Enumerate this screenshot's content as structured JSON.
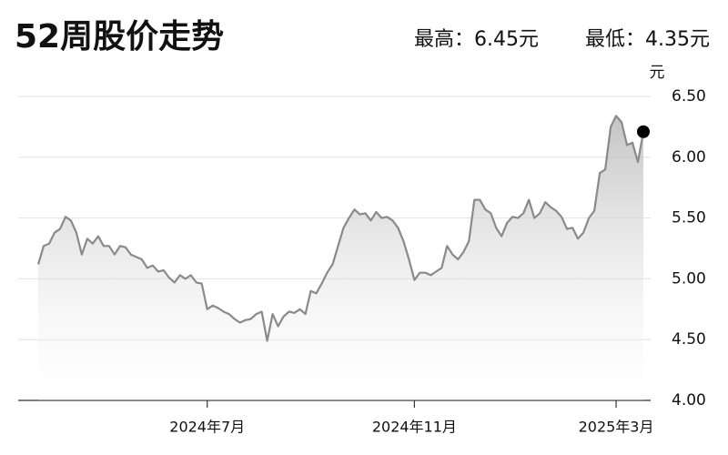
{
  "chart_data": {
    "type": "line",
    "title": "52周股价走势",
    "high_label": "最高：6.45元",
    "low_label": "最低：4.35元",
    "y_unit": "元",
    "categories": [
      null,
      null,
      null,
      null,
      null,
      null,
      null,
      null,
      null,
      null,
      null,
      null,
      null,
      null,
      null,
      null,
      null,
      null,
      null,
      null,
      null,
      null,
      null,
      null,
      null,
      null,
      null,
      null,
      null,
      null,
      null,
      "2024年7月",
      null,
      null,
      null,
      null,
      null,
      null,
      null,
      null,
      null,
      null,
      null,
      null,
      null,
      null,
      null,
      null,
      null,
      null,
      null,
      null,
      null,
      null,
      null,
      null,
      null,
      null,
      null,
      null,
      null,
      null,
      null,
      null,
      null,
      null,
      null,
      null,
      null,
      "2024年11月",
      null,
      null,
      null,
      null,
      null,
      null,
      null,
      null,
      null,
      null,
      null,
      null,
      null,
      null,
      null,
      null,
      null,
      null,
      null,
      null,
      null,
      null,
      null,
      null,
      null,
      null,
      null,
      null,
      null,
      null,
      null,
      null,
      null,
      null,
      null,
      null,
      "2025年3月",
      null,
      null,
      null,
      null,
      null
    ],
    "series": [
      {
        "color": "#8a8a8a",
        "values": [
          5.12,
          5.27,
          5.29,
          5.38,
          5.41,
          5.51,
          5.48,
          5.38,
          5.2,
          5.33,
          5.29,
          5.35,
          5.27,
          5.27,
          5.2,
          5.27,
          5.26,
          5.2,
          5.18,
          5.16,
          5.09,
          5.11,
          5.06,
          5.07,
          5.01,
          4.97,
          5.03,
          5.0,
          5.03,
          4.97,
          4.96,
          4.75,
          4.78,
          4.76,
          4.73,
          4.71,
          4.67,
          4.64,
          4.66,
          4.67,
          4.71,
          4.73,
          4.49,
          4.71,
          4.61,
          4.69,
          4.73,
          4.72,
          4.75,
          4.71,
          4.9,
          4.88,
          4.96,
          5.05,
          5.12,
          5.27,
          5.42,
          5.5,
          5.57,
          5.53,
          5.54,
          5.48,
          5.55,
          5.5,
          5.51,
          5.48,
          5.42,
          5.31,
          5.16,
          4.99,
          5.05,
          5.05,
          5.03,
          5.06,
          5.09,
          5.27,
          5.2,
          5.16,
          5.22,
          5.31,
          5.65,
          5.65,
          5.57,
          5.54,
          5.42,
          5.35,
          5.46,
          5.51,
          5.5,
          5.54,
          5.65,
          5.5,
          5.54,
          5.63,
          5.59,
          5.56,
          5.51,
          5.41,
          5.42,
          5.33,
          5.38,
          5.5,
          5.56,
          5.87,
          5.9,
          6.25,
          6.34,
          6.29,
          6.1,
          6.12,
          5.96,
          6.21
        ]
      }
    ],
    "ylim": [
      4,
      6.5
    ],
    "yticks": [
      {
        "value": 4,
        "label": "4.00"
      },
      {
        "value": 4.5,
        "label": "4.50"
      },
      {
        "value": 5,
        "label": "5.00"
      },
      {
        "value": 5.5,
        "label": "5.50"
      },
      {
        "value": 6,
        "label": "6.00"
      },
      {
        "value": 6.5,
        "label": "6.50"
      }
    ],
    "grid": true
  }
}
